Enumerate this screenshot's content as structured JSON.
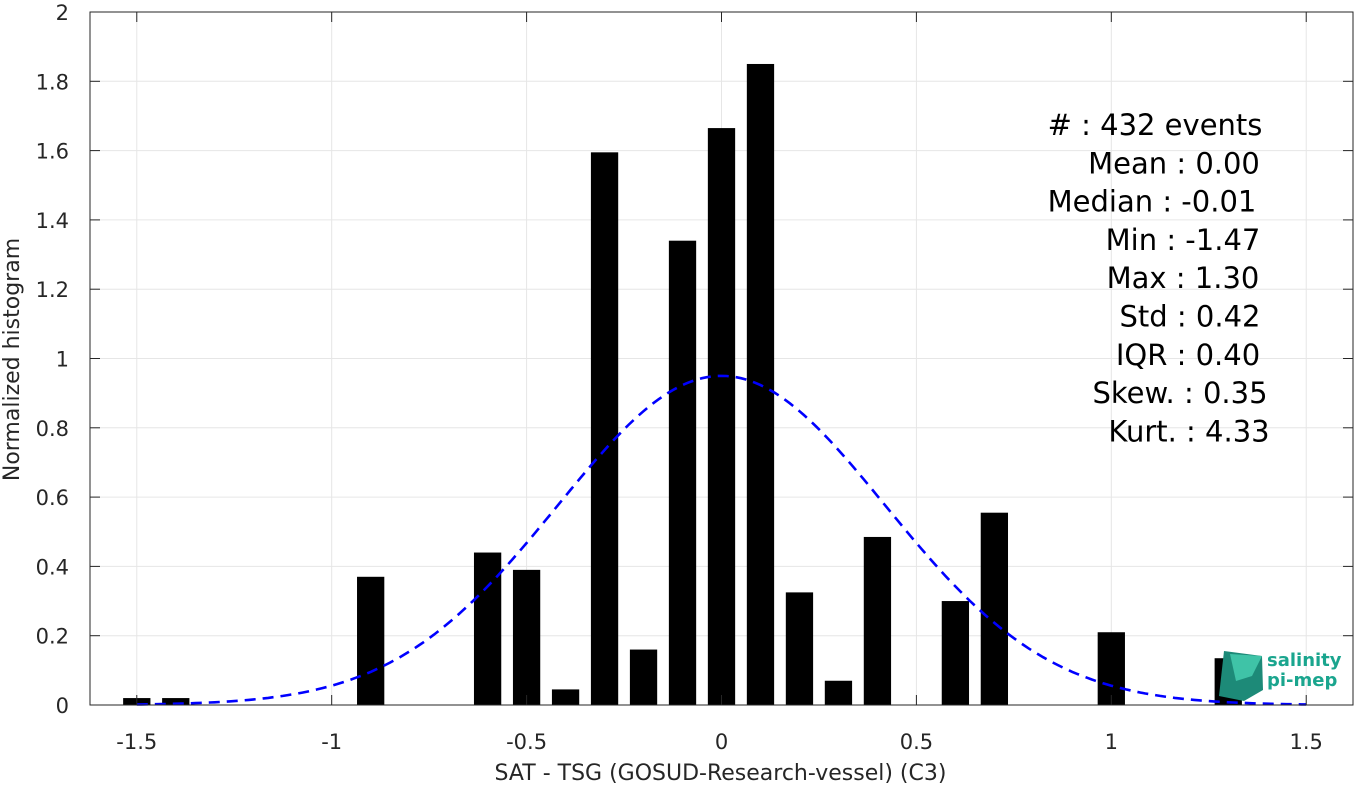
{
  "chart_data": {
    "type": "bar",
    "xlabel": "SAT - TSG (GOSUD-Research-vessel) (C3)",
    "ylabel": "Normalized histogram",
    "xlim": [
      -1.62,
      1.62
    ],
    "ylim": [
      0,
      2
    ],
    "grid": true,
    "bar_width": 0.07,
    "xticks": [
      -1.5,
      -1,
      -0.5,
      0,
      0.5,
      1,
      1.5
    ],
    "xtick_labels": [
      "-1.5",
      "-1",
      "-0.5",
      "0",
      "0.5",
      "1",
      "1.5"
    ],
    "yticks": [
      0,
      0.2,
      0.4,
      0.6,
      0.8,
      1,
      1.2,
      1.4,
      1.6,
      1.8,
      2
    ],
    "ytick_labels": [
      "0",
      "0.2",
      "0.4",
      "0.6",
      "0.8",
      "1",
      "1.2",
      "1.4",
      "1.6",
      "1.8",
      "2"
    ],
    "bars": {
      "x": [
        -1.5,
        -1.4,
        -0.9,
        -0.6,
        -0.5,
        -0.4,
        -0.3,
        -0.2,
        -0.1,
        0.0,
        0.1,
        0.2,
        0.3,
        0.4,
        0.6,
        0.7,
        1.0,
        1.3
      ],
      "values": [
        0.02,
        0.02,
        0.37,
        0.44,
        0.39,
        0.045,
        1.595,
        0.16,
        1.34,
        1.665,
        1.85,
        0.325,
        0.07,
        0.485,
        0.3,
        0.555,
        0.21,
        0.135
      ],
      "color": "#000000"
    },
    "fit_curve": {
      "type": "gaussian",
      "style": "dashed",
      "color": "#0000ff",
      "mean": 0.0,
      "std": 0.42,
      "x_range": [
        -1.5,
        1.5
      ]
    },
    "stats": [
      {
        "label": "#  : 432 events"
      },
      {
        "label": "Mean : 0.00"
      },
      {
        "label": "Median : -0.01"
      },
      {
        "label": "Min : -1.47"
      },
      {
        "label": "Max : 1.30"
      },
      {
        "label": "Std : 0.42"
      },
      {
        "label": "IQR : 0.40"
      },
      {
        "label": "Skew. : 0.35"
      },
      {
        "label": "Kurt. : 4.33"
      }
    ]
  },
  "logo": {
    "line1": "salinity",
    "line2": "pi-mep",
    "color": "#1aa58e"
  }
}
